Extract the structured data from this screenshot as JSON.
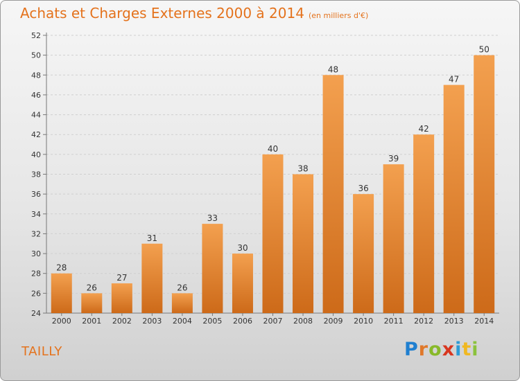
{
  "header": {
    "title": "Achats et Charges Externes 2000 à 2014",
    "subtitle": "(en milliers d'€)"
  },
  "footer": {
    "place": "TAILLY"
  },
  "logo": {
    "text": "Proxiti",
    "letters": [
      {
        "ch": "P",
        "color": "#1f7fd0"
      },
      {
        "ch": "r",
        "color": "#e0782a"
      },
      {
        "ch": "o",
        "color": "#88b929"
      },
      {
        "ch": "x",
        "color": "#d8361f"
      },
      {
        "ch": "i",
        "color": "#2c9bd6"
      },
      {
        "ch": "t",
        "color": "#f0b821"
      },
      {
        "ch": "i",
        "color": "#8bc23c"
      }
    ]
  },
  "colors": {
    "accent": "#e4721c",
    "bar_top": "#f3a04f",
    "bar_bottom": "#cd6a19"
  },
  "chart_data": {
    "type": "bar",
    "title": "Achats et Charges Externes 2000 à 2014",
    "subtitle": "(en milliers d'€)",
    "categories": [
      "2000",
      "2001",
      "2002",
      "2003",
      "2004",
      "2005",
      "2006",
      "2007",
      "2008",
      "2009",
      "2010",
      "2011",
      "2012",
      "2013",
      "2014"
    ],
    "values": [
      28,
      26,
      27,
      31,
      26,
      33,
      30,
      40,
      38,
      48,
      36,
      39,
      42,
      47,
      50
    ],
    "ylim": [
      24,
      52
    ],
    "yticks": [
      24,
      26,
      28,
      30,
      32,
      34,
      36,
      38,
      40,
      42,
      44,
      46,
      48,
      50,
      52
    ],
    "grid": true,
    "legend": "none",
    "data_labels": true
  }
}
